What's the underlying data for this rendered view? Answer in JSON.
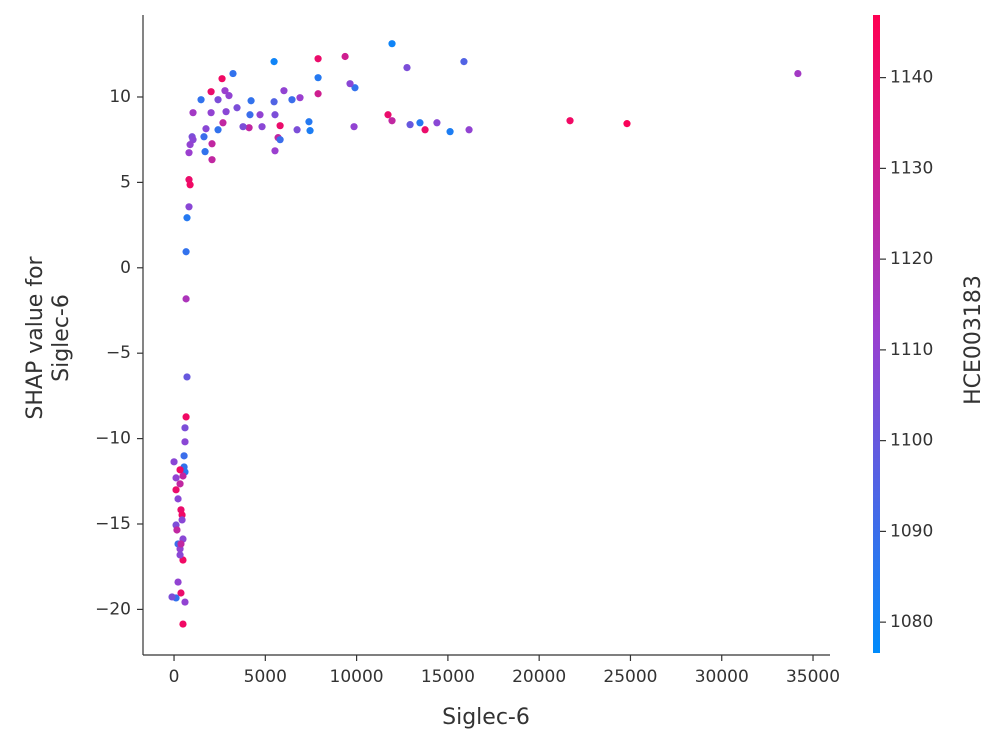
{
  "chart_data": {
    "type": "scatter",
    "xlabel": "Siglec-6",
    "ylabel": [
      "SHAP value for",
      "Siglec-6"
    ],
    "xlim": [
      -1700,
      35930
    ],
    "ylim": [
      -22.67,
      14.8
    ],
    "xticks": [
      0,
      5000,
      10000,
      15000,
      20000,
      25000,
      30000,
      35000
    ],
    "yticks": [
      {
        "value": -20,
        "label": "−20"
      },
      {
        "value": -15,
        "label": "−15"
      },
      {
        "value": -10,
        "label": "−10"
      },
      {
        "value": -5,
        "label": "−5"
      },
      0,
      5,
      10
    ],
    "colorbar": {
      "label": "HCE003183",
      "lim": [
        1076.6,
        1146.9
      ],
      "ticks": [
        1080,
        1090,
        1100,
        1110,
        1120,
        1130,
        1140
      ],
      "colors": [
        "#008bfb",
        "#9a3fd0",
        "#ff0052"
      ]
    },
    "series": [
      {
        "x": [
          34170,
          24810,
          21690,
          16160,
          15880,
          15120,
          14400,
          13750,
          13470,
          12930,
          12760,
          11940,
          11940,
          11720,
          9860,
          9910,
          9640,
          9370,
          7890,
          7890,
          7890,
          7390,
          7450,
          6900,
          6460,
          6740,
          6020,
          5810,
          5700,
          5810,
          5480,
          5480,
          5530,
          5530,
          4820,
          4710,
          4220,
          4160,
          4110,
          3780,
          3450,
          3230,
          3010,
          2850,
          2680,
          2410,
          2630,
          2790,
          2410,
          2030,
          2030,
          2080,
          2080,
          1750,
          1640,
          1700,
          1480,
          1040,
          990,
          1040,
          880,
          820,
          820,
          880,
          820,
          710,
          660,
          660,
          710,
          660,
          600,
          600,
          550,
          550,
          600,
          490,
          0,
          110,
          330,
          110,
          330,
          220,
          380,
          440,
          110,
          490,
          220,
          330,
          380,
          490,
          220,
          110,
          -110,
          380,
          600,
          490,
          330,
          160,
          440
        ],
        "values": [
          11.37,
          8.44,
          8.61,
          8.08,
          12.07,
          7.97,
          8.49,
          8.08,
          8.49,
          8.38,
          11.72,
          13.12,
          8.61,
          8.96,
          8.26,
          10.54,
          10.78,
          12.37,
          12.24,
          11.13,
          10.19,
          8.55,
          8.03,
          9.96,
          9.84,
          8.08,
          10.37,
          8.32,
          7.62,
          7.5,
          12.07,
          9.72,
          8.96,
          6.85,
          8.26,
          8.96,
          9.78,
          8.96,
          8.2,
          8.26,
          9.37,
          11.37,
          10.08,
          9.14,
          8.49,
          8.08,
          11.07,
          10.37,
          9.84,
          10.31,
          9.08,
          7.26,
          6.33,
          8.14,
          7.67,
          6.8,
          9.84,
          9.08,
          7.67,
          7.5,
          7.21,
          6.74,
          5.16,
          4.86,
          3.57,
          2.93,
          0.94,
          -1.82,
          -6.39,
          -8.73,
          -9.37,
          -10.19,
          -11.01,
          -11.66,
          -11.95,
          -12.19,
          -11.36,
          -12.3,
          -11.83,
          -13.0,
          -12.65,
          -13.53,
          -14.17,
          -14.47,
          -15.06,
          -15.88,
          -16.17,
          -16.46,
          -16.17,
          -17.11,
          -18.4,
          -19.33,
          -19.27,
          -19.04,
          -19.57,
          -20.86,
          -16.81,
          -15.35,
          -14.76
        ],
        "c": [
          1115,
          1145,
          1142,
          1110,
          1095,
          1083,
          1108,
          1140,
          1085,
          1100,
          1105,
          1080,
          1125,
          1140,
          1110,
          1088,
          1108,
          1130,
          1140,
          1085,
          1130,
          1085,
          1083,
          1112,
          1090,
          1105,
          1110,
          1140,
          1125,
          1090,
          1080,
          1095,
          1105,
          1112,
          1108,
          1110,
          1088,
          1090,
          1125,
          1105,
          1105,
          1088,
          1110,
          1108,
          1125,
          1088,
          1142,
          1112,
          1105,
          1140,
          1110,
          1125,
          1125,
          1108,
          1090,
          1088,
          1088,
          1115,
          1105,
          1108,
          1110,
          1112,
          1140,
          1142,
          1108,
          1085,
          1088,
          1118,
          1100,
          1142,
          1105,
          1108,
          1090,
          1088,
          1085,
          1125,
          1108,
          1110,
          1142,
          1140,
          1125,
          1108,
          1140,
          1142,
          1105,
          1108,
          1090,
          1110,
          1125,
          1142,
          1110,
          1088,
          1105,
          1140,
          1110,
          1142,
          1108,
          1125,
          1108
        ]
      }
    ]
  }
}
